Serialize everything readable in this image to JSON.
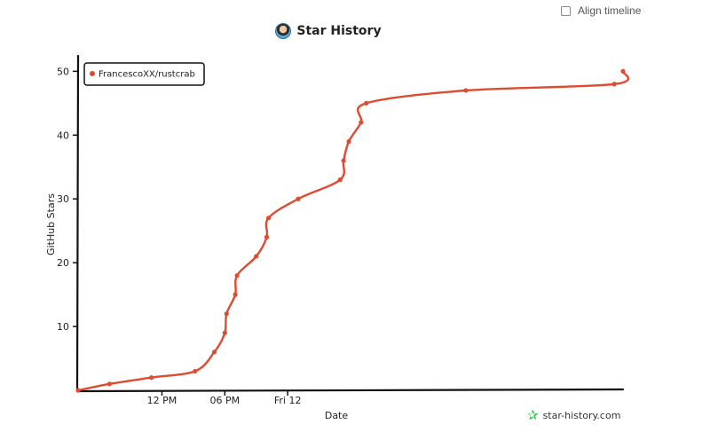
{
  "header": {
    "align_label": "Align timeline",
    "title": "Star History"
  },
  "watermark": {
    "text": "star-history.com",
    "icon": "star-icon"
  },
  "colors": {
    "series": "#dd4b31",
    "watermark": "#1fbf3a"
  },
  "chart_data": {
    "type": "line",
    "xlabel": "Date",
    "ylabel": "GitHub Stars",
    "xlim": [
      "2024-05-29T04:00",
      "2024-05-31T08:00"
    ],
    "ylim": [
      0,
      52
    ],
    "yticks": [
      10,
      20,
      30,
      40,
      50
    ],
    "xticks": [
      {
        "label": "12 PM",
        "value": "2024-05-29T12:00"
      },
      {
        "label": "06 PM",
        "value": "2024-05-29T18:00"
      },
      {
        "label": "Fri 12",
        "value": "2024-05-30T00:00"
      }
    ],
    "legend": "top-left",
    "series": [
      {
        "name": "FrancescoXX/rustcrab",
        "color": "#dd4b31",
        "points": [
          {
            "x": "2024-05-29T04:00",
            "y": 0
          },
          {
            "x": "2024-05-29T07:00",
            "y": 1
          },
          {
            "x": "2024-05-29T11:00",
            "y": 2
          },
          {
            "x": "2024-05-29T15:10",
            "y": 3
          },
          {
            "x": "2024-05-29T17:00",
            "y": 6
          },
          {
            "x": "2024-05-29T18:00",
            "y": 9
          },
          {
            "x": "2024-05-29T18:10",
            "y": 12
          },
          {
            "x": "2024-05-29T19:00",
            "y": 15
          },
          {
            "x": "2024-05-29T19:10",
            "y": 18
          },
          {
            "x": "2024-05-29T21:00",
            "y": 21
          },
          {
            "x": "2024-05-29T22:00",
            "y": 24
          },
          {
            "x": "2024-05-29T22:10",
            "y": 27
          },
          {
            "x": "2024-05-30T01:00",
            "y": 30
          },
          {
            "x": "2024-05-30T05:00",
            "y": 33
          },
          {
            "x": "2024-05-30T05:20",
            "y": 36
          },
          {
            "x": "2024-05-30T05:50",
            "y": 39
          },
          {
            "x": "2024-05-30T07:00",
            "y": 42
          },
          {
            "x": "2024-05-30T07:30",
            "y": 45
          },
          {
            "x": "2024-05-30T17:00",
            "y": 47
          },
          {
            "x": "2024-05-31T07:10",
            "y": 48
          },
          {
            "x": "2024-05-31T08:00",
            "y": 50
          }
        ]
      }
    ]
  }
}
